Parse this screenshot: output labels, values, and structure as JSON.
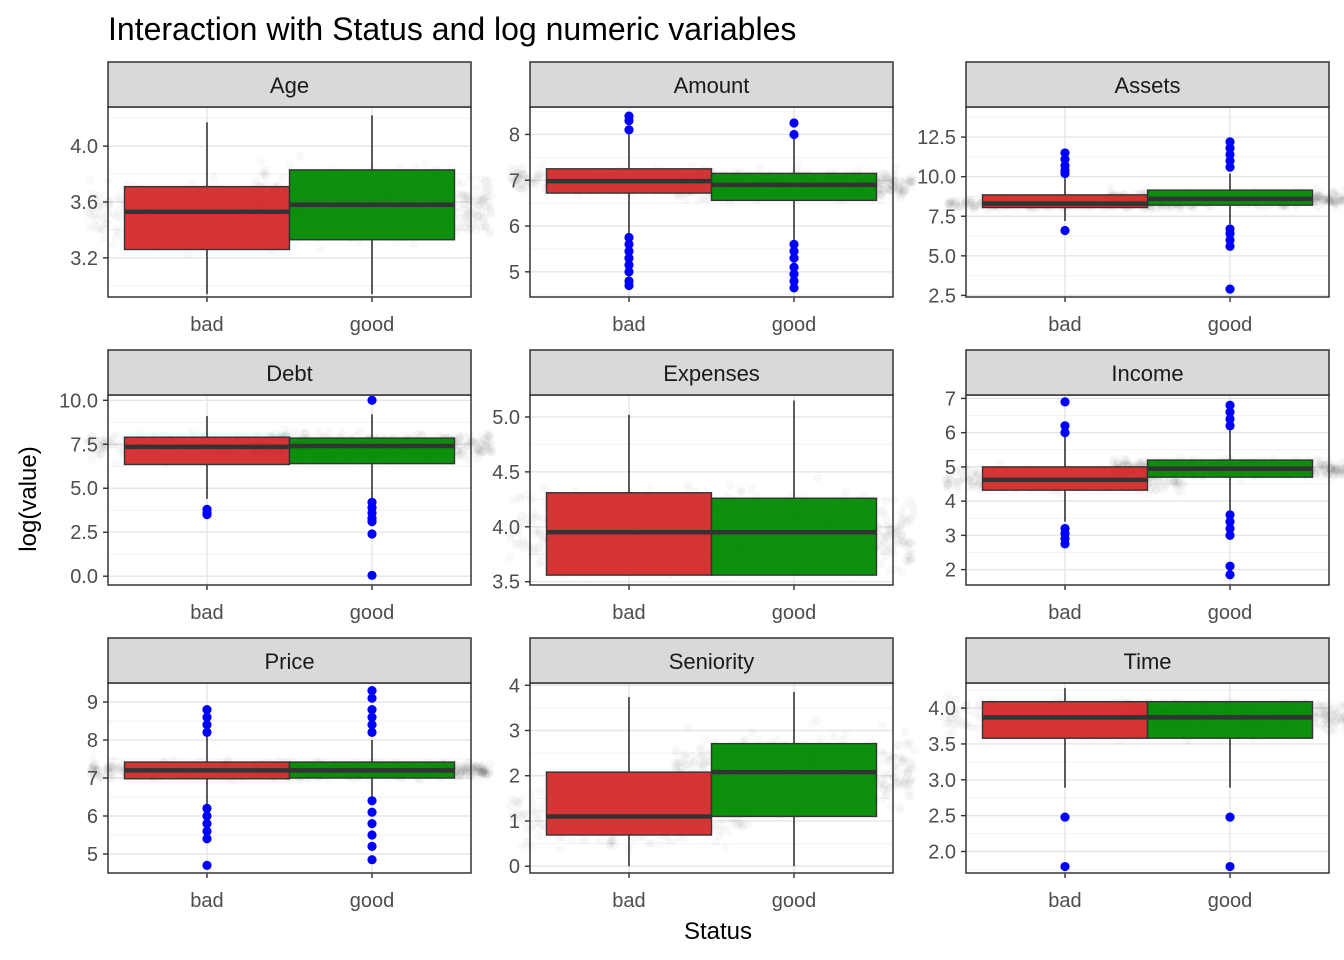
{
  "chart_data": {
    "type": "boxplot",
    "title": "Interaction with Status and log numeric variables",
    "xlabel": "Status",
    "ylabel": "log(value)",
    "categories": [
      "bad",
      "good"
    ],
    "colors": {
      "bad": "#d42a2a",
      "good": "#008a00",
      "outlier": "#0000ff",
      "jitter": "#000000",
      "strip": "#d9d9d9",
      "panel_border": "#333333",
      "grid": "#ebebeb"
    },
    "facets": [
      {
        "name": "Age",
        "ylim": [
          2.92,
          4.28
        ],
        "yticks": [
          3.2,
          3.6,
          4.0
        ],
        "ytick_labels": [
          "3.2",
          "3.6",
          "4.0"
        ],
        "boxes": [
          {
            "category": "bad",
            "lower_whisker": 2.94,
            "q1": 3.26,
            "median": 3.53,
            "q3": 3.71,
            "upper_whisker": 4.17,
            "outliers": []
          },
          {
            "category": "good",
            "lower_whisker": 2.94,
            "q1": 3.33,
            "median": 3.58,
            "q3": 3.83,
            "upper_whisker": 4.22,
            "outliers": []
          }
        ]
      },
      {
        "name": "Amount",
        "ylim": [
          4.45,
          8.6
        ],
        "yticks": [
          5,
          6,
          7,
          8
        ],
        "ytick_labels": [
          "5",
          "6",
          "7",
          "8"
        ],
        "boxes": [
          {
            "category": "bad",
            "lower_whisker": 5.8,
            "q1": 6.72,
            "median": 6.98,
            "q3": 7.25,
            "upper_whisker": 8.0,
            "outliers": [
              8.4,
              8.3,
              8.1,
              5.75,
              5.6,
              5.45,
              5.3,
              5.15,
              5.0,
              4.8,
              4.7
            ]
          },
          {
            "category": "good",
            "lower_whisker": 5.7,
            "q1": 6.56,
            "median": 6.9,
            "q3": 7.15,
            "upper_whisker": 7.9,
            "outliers": [
              8.25,
              8.0,
              5.6,
              5.45,
              5.3,
              5.1,
              4.95,
              4.8,
              4.65
            ]
          }
        ]
      },
      {
        "name": "Assets",
        "ylim": [
          2.4,
          14.4
        ],
        "yticks": [
          2.5,
          5.0,
          7.5,
          10.0,
          12.5
        ],
        "ytick_labels": [
          "2.5",
          "5.0",
          "7.5",
          "10.0",
          "12.5"
        ],
        "boxes": [
          {
            "category": "bad",
            "lower_whisker": 7.2,
            "q1": 8.05,
            "median": 8.3,
            "q3": 8.85,
            "upper_whisker": 9.9,
            "outliers": [
              11.5,
              11.1,
              10.7,
              10.4,
              10.2,
              6.6
            ]
          },
          {
            "category": "good",
            "lower_whisker": 7.0,
            "q1": 8.2,
            "median": 8.6,
            "q3": 9.15,
            "upper_whisker": 10.2,
            "outliers": [
              12.2,
              11.8,
              11.4,
              11.0,
              10.6,
              6.7,
              6.4,
              6.0,
              5.6,
              2.9
            ]
          }
        ]
      },
      {
        "name": "Debt",
        "ylim": [
          -0.5,
          10.3
        ],
        "yticks": [
          0.0,
          2.5,
          5.0,
          7.5,
          10.0
        ],
        "ytick_labels": [
          "0.0",
          "2.5",
          "5.0",
          "7.5",
          "10.0"
        ],
        "boxes": [
          {
            "category": "bad",
            "lower_whisker": 4.4,
            "q1": 6.35,
            "median": 7.35,
            "q3": 7.9,
            "upper_whisker": 9.1,
            "outliers": [
              3.8,
              3.6,
              3.5
            ]
          },
          {
            "category": "good",
            "lower_whisker": 4.3,
            "q1": 6.4,
            "median": 7.4,
            "q3": 7.85,
            "upper_whisker": 9.2,
            "outliers": [
              10.0,
              4.2,
              3.9,
              3.6,
              3.3,
              3.1,
              2.4,
              0.05
            ]
          }
        ]
      },
      {
        "name": "Expenses",
        "ylim": [
          3.47,
          5.2
        ],
        "yticks": [
          3.5,
          4.0,
          4.5,
          5.0
        ],
        "ytick_labels": [
          "3.5",
          "4.0",
          "4.5",
          "5.0"
        ],
        "boxes": [
          {
            "category": "bad",
            "lower_whisker": 3.56,
            "q1": 3.56,
            "median": 3.95,
            "q3": 4.31,
            "upper_whisker": 5.02,
            "outliers": []
          },
          {
            "category": "good",
            "lower_whisker": 3.56,
            "q1": 3.56,
            "median": 3.95,
            "q3": 4.26,
            "upper_whisker": 5.15,
            "outliers": []
          }
        ]
      },
      {
        "name": "Income",
        "ylim": [
          1.55,
          7.1
        ],
        "yticks": [
          2,
          3,
          4,
          5,
          6,
          7
        ],
        "ytick_labels": [
          "2",
          "3",
          "4",
          "5",
          "6",
          "7"
        ],
        "boxes": [
          {
            "category": "bad",
            "lower_whisker": 3.4,
            "q1": 4.32,
            "median": 4.62,
            "q3": 5.0,
            "upper_whisker": 5.9,
            "outliers": [
              6.9,
              6.2,
              6.0,
              3.2,
              3.05,
              2.9,
              2.75
            ]
          },
          {
            "category": "good",
            "lower_whisker": 3.7,
            "q1": 4.7,
            "median": 4.95,
            "q3": 5.2,
            "upper_whisker": 6.1,
            "outliers": [
              6.8,
              6.6,
              6.4,
              6.2,
              3.6,
              3.4,
              3.2,
              3.0,
              2.1,
              1.85
            ]
          }
        ]
      },
      {
        "name": "Price",
        "ylim": [
          4.5,
          9.5
        ],
        "yticks": [
          5,
          6,
          7,
          8,
          9
        ],
        "ytick_labels": [
          "5",
          "6",
          "7",
          "8",
          "9"
        ],
        "boxes": [
          {
            "category": "bad",
            "lower_whisker": 6.3,
            "q1": 6.98,
            "median": 7.2,
            "q3": 7.42,
            "upper_whisker": 8.1,
            "outliers": [
              8.8,
              8.6,
              8.4,
              8.2,
              6.2,
              6.0,
              5.8,
              5.6,
              5.4,
              4.7
            ]
          },
          {
            "category": "good",
            "lower_whisker": 6.5,
            "q1": 7.0,
            "median": 7.2,
            "q3": 7.42,
            "upper_whisker": 8.0,
            "outliers": [
              9.3,
              9.1,
              8.8,
              8.6,
              8.4,
              8.2,
              6.4,
              6.1,
              5.8,
              5.5,
              5.2,
              4.85
            ]
          }
        ]
      },
      {
        "name": "Seniority",
        "ylim": [
          -0.15,
          4.05
        ],
        "yticks": [
          0,
          1,
          2,
          3,
          4
        ],
        "ytick_labels": [
          "0",
          "1",
          "2",
          "3",
          "4"
        ],
        "boxes": [
          {
            "category": "bad",
            "lower_whisker": 0.0,
            "q1": 0.69,
            "median": 1.1,
            "q3": 2.08,
            "upper_whisker": 3.74,
            "outliers": []
          },
          {
            "category": "good",
            "lower_whisker": 0.0,
            "q1": 1.1,
            "median": 2.08,
            "q3": 2.71,
            "upper_whisker": 3.85,
            "outliers": []
          }
        ]
      },
      {
        "name": "Time",
        "ylim": [
          1.7,
          4.35
        ],
        "yticks": [
          2.0,
          2.5,
          3.0,
          3.5,
          4.0
        ],
        "ytick_labels": [
          "2.0",
          "2.5",
          "3.0",
          "3.5",
          "4.0"
        ],
        "boxes": [
          {
            "category": "bad",
            "lower_whisker": 2.89,
            "q1": 3.58,
            "median": 3.87,
            "q3": 4.09,
            "upper_whisker": 4.28,
            "outliers": [
              2.48,
              1.79
            ]
          },
          {
            "category": "good",
            "lower_whisker": 2.89,
            "q1": 3.58,
            "median": 3.87,
            "q3": 4.09,
            "upper_whisker": 4.09,
            "outliers": [
              2.48,
              1.79
            ]
          }
        ]
      }
    ]
  }
}
